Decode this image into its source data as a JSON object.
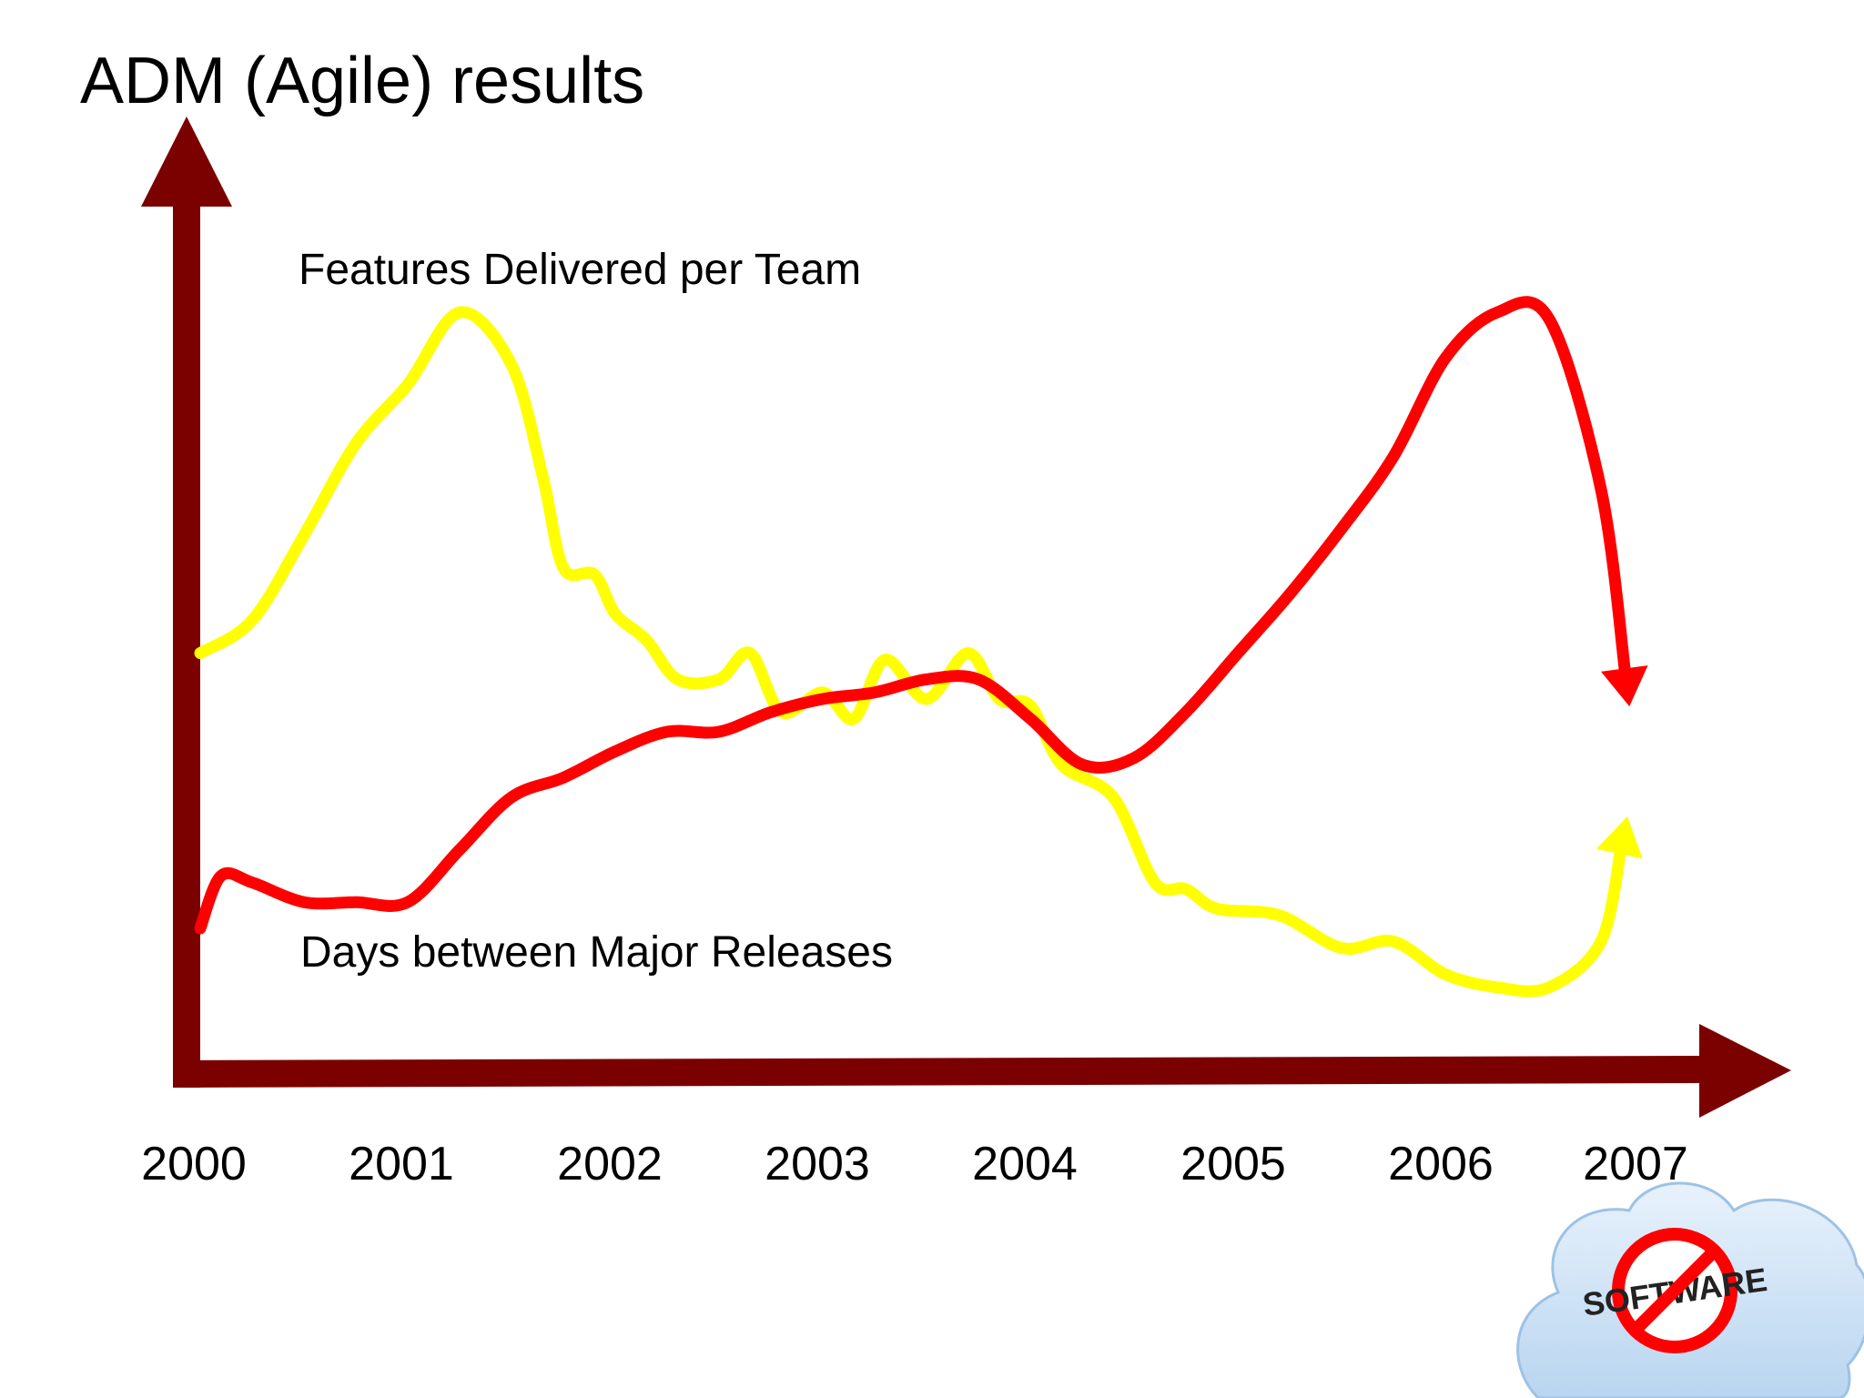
{
  "slide": {
    "title": "ADM (Agile) results"
  },
  "chart_data": {
    "type": "line",
    "title": "",
    "xlabel": "",
    "ylabel": "",
    "x": [
      2000,
      2001,
      2002,
      2003,
      2004,
      2005,
      2006,
      2007
    ],
    "tick_labels": [
      "2000",
      "2001",
      "2002",
      "2003",
      "2004",
      "2005",
      "2006",
      "2007"
    ],
    "grid": false,
    "legend": "none",
    "series": [
      {
        "name": "Features Delivered per Team",
        "color": "#ffff00",
        "ending": "arrow-up",
        "points": [
          [
            2000.0,
            0.42
          ],
          [
            2000.25,
            0.47
          ],
          [
            2000.5,
            0.6
          ],
          [
            2000.75,
            0.74
          ],
          [
            2001.0,
            0.83
          ],
          [
            2001.25,
            0.94
          ],
          [
            2001.5,
            0.86
          ],
          [
            2001.65,
            0.69
          ],
          [
            2001.75,
            0.55
          ],
          [
            2001.9,
            0.54
          ],
          [
            2002.0,
            0.48
          ],
          [
            2002.15,
            0.44
          ],
          [
            2002.3,
            0.38
          ],
          [
            2002.5,
            0.38
          ],
          [
            2002.65,
            0.42
          ],
          [
            2002.8,
            0.33
          ],
          [
            2003.0,
            0.36
          ],
          [
            2003.15,
            0.32
          ],
          [
            2003.3,
            0.41
          ],
          [
            2003.5,
            0.35
          ],
          [
            2003.7,
            0.42
          ],
          [
            2003.85,
            0.35
          ],
          [
            2004.0,
            0.34
          ],
          [
            2004.15,
            0.25
          ],
          [
            2004.4,
            0.2
          ],
          [
            2004.6,
            0.07
          ],
          [
            2004.75,
            0.06
          ],
          [
            2004.9,
            0.03
          ],
          [
            2005.2,
            0.02
          ],
          [
            2005.5,
            -0.03
          ],
          [
            2005.75,
            -0.02
          ],
          [
            2006.0,
            -0.07
          ],
          [
            2006.25,
            -0.09
          ],
          [
            2006.5,
            -0.09
          ],
          [
            2006.75,
            -0.02
          ],
          [
            2006.85,
            0.13
          ]
        ]
      },
      {
        "name": "Days between Major Releases",
        "color": "#ff0000",
        "ending": "arrow-down",
        "points": [
          [
            2000.0,
            0.0
          ],
          [
            2000.1,
            0.08
          ],
          [
            2000.25,
            0.07
          ],
          [
            2000.5,
            0.04
          ],
          [
            2000.75,
            0.04
          ],
          [
            2001.0,
            0.04
          ],
          [
            2001.25,
            0.12
          ],
          [
            2001.5,
            0.2
          ],
          [
            2001.75,
            0.23
          ],
          [
            2002.0,
            0.27
          ],
          [
            2002.25,
            0.3
          ],
          [
            2002.5,
            0.3
          ],
          [
            2002.75,
            0.33
          ],
          [
            2003.0,
            0.35
          ],
          [
            2003.25,
            0.36
          ],
          [
            2003.5,
            0.38
          ],
          [
            2003.75,
            0.38
          ],
          [
            2004.0,
            0.32
          ],
          [
            2004.25,
            0.25
          ],
          [
            2004.5,
            0.26
          ],
          [
            2004.75,
            0.33
          ],
          [
            2005.0,
            0.42
          ],
          [
            2005.25,
            0.51
          ],
          [
            2005.5,
            0.61
          ],
          [
            2005.75,
            0.72
          ],
          [
            2006.0,
            0.87
          ],
          [
            2006.25,
            0.94
          ],
          [
            2006.5,
            0.93
          ],
          [
            2006.75,
            0.67
          ],
          [
            2006.87,
            0.38
          ]
        ]
      }
    ],
    "annotations": [
      {
        "text": "Features Delivered per Team"
      },
      {
        "text": "Days between Major Releases"
      }
    ],
    "axis_color": "#7b0000"
  },
  "logo": {
    "text": "SOFTWARE",
    "cloud_color": "#cfe3f7",
    "ring_color": "#ff0000"
  }
}
